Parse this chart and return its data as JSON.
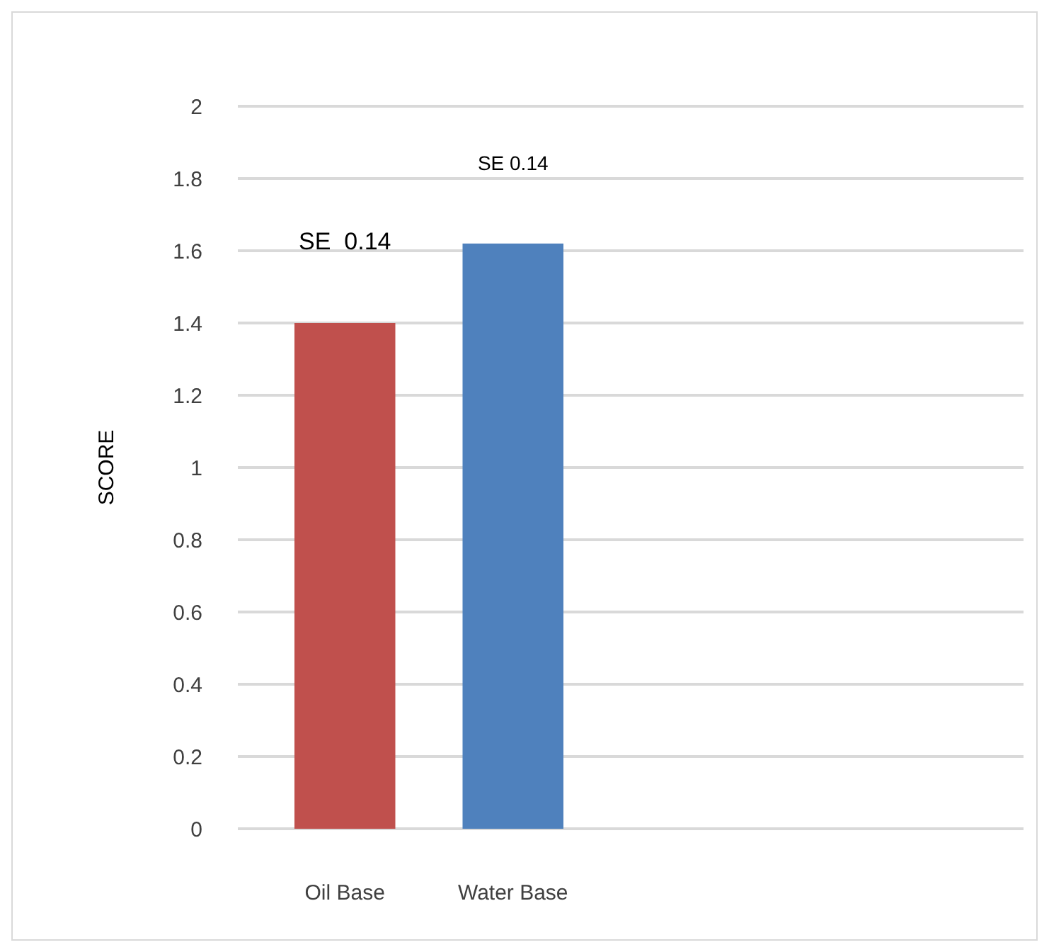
{
  "chart_data": {
    "type": "bar",
    "ylabel": "SCORE",
    "categories": [
      "Oil Base",
      "Water Base"
    ],
    "values": [
      1.4,
      1.62
    ],
    "colors": [
      "#c0504d",
      "#4f81bd"
    ],
    "ylim": [
      0,
      2
    ],
    "yticks": [
      0,
      0.2,
      0.4,
      0.6,
      0.8,
      1,
      1.2,
      1.4,
      1.6,
      1.8,
      2
    ],
    "grid": "y",
    "annotations": [
      "SE  0.14",
      "SE 0.14"
    ]
  }
}
